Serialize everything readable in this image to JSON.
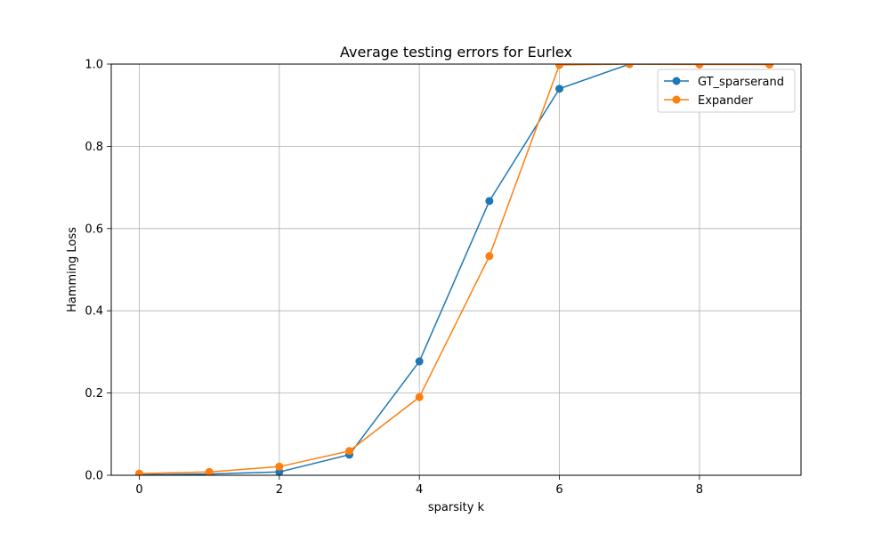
{
  "chart_data": {
    "type": "line",
    "title": "Average testing errors for Eurlex",
    "xlabel": "sparsity k",
    "ylabel": "Hamming Loss",
    "xlim": [
      -0.4,
      9.45
    ],
    "ylim": [
      0,
      1.0
    ],
    "xticks": [
      0,
      2,
      4,
      6,
      8
    ],
    "yticks": [
      0.0,
      0.2,
      0.4,
      0.6,
      0.8,
      1.0
    ],
    "xtick_labels": [
      "0",
      "2",
      "4",
      "6",
      "8"
    ],
    "ytick_labels": [
      "0.0",
      "0.2",
      "0.4",
      "0.6",
      "0.8",
      "1.0"
    ],
    "grid": true,
    "legend_position": "top-right",
    "x": [
      0,
      1,
      2,
      3,
      4,
      5,
      6,
      7,
      8,
      9
    ],
    "series": [
      {
        "name": "GT_sparserand",
        "color": "#1f77b4",
        "marker": "circle",
        "values": [
          0.001,
          0.003,
          0.008,
          0.05,
          0.277,
          0.667,
          0.94,
          1.0,
          1.0,
          1.0
        ]
      },
      {
        "name": "Expander",
        "color": "#ff7f0e",
        "marker": "circle",
        "values": [
          0.004,
          0.008,
          0.021,
          0.059,
          0.19,
          0.533,
          0.998,
          1.0,
          0.999,
          0.999
        ]
      }
    ]
  }
}
